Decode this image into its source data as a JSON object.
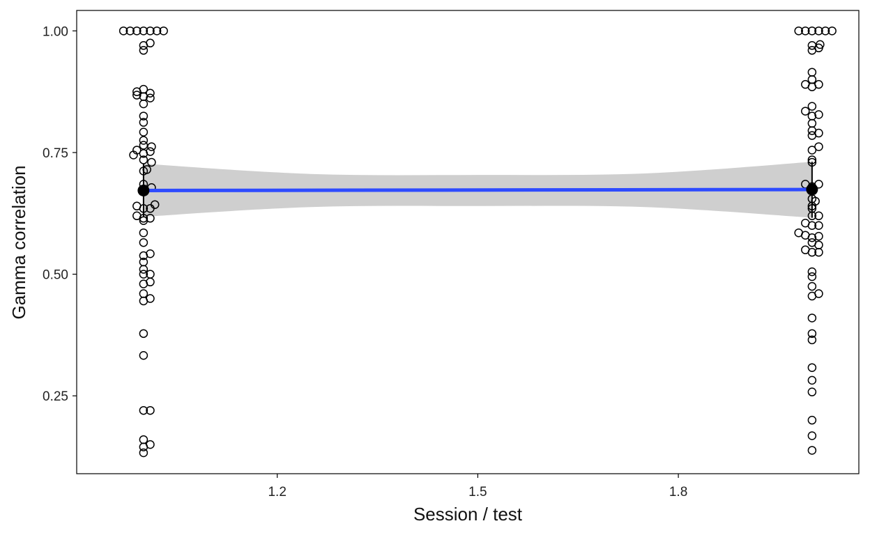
{
  "chart_data": {
    "type": "scatter",
    "title": "",
    "xlabel": "Session / test",
    "ylabel": "Gamma correlation",
    "xlim": [
      0.9,
      2.07
    ],
    "ylim": [
      0.09,
      1.042
    ],
    "x_ticks": [
      1.2,
      1.5,
      1.8
    ],
    "x_tick_labels": [
      "1.2",
      "1.5",
      "1.8"
    ],
    "y_ticks": [
      0.25,
      0.5,
      0.75,
      1.0
    ],
    "y_tick_labels": [
      "0.25",
      "0.50",
      "0.75",
      "1.00"
    ],
    "grid": false,
    "legend": "none",
    "colors": {
      "points": "#000000",
      "mean": "#000000",
      "fit_line": "#2E4BFF",
      "ci_band": "#CFCFCF",
      "frame": "#000000"
    },
    "fit": {
      "x": [
        1,
        2
      ],
      "y": [
        0.672,
        0.674
      ],
      "ci": [
        {
          "x": 1.0,
          "lower": 0.618,
          "upper": 0.727
        },
        {
          "x": 1.25,
          "lower": 0.638,
          "upper": 0.706
        },
        {
          "x": 1.5,
          "lower": 0.64,
          "upper": 0.704
        },
        {
          "x": 1.75,
          "lower": 0.638,
          "upper": 0.707
        },
        {
          "x": 2.0,
          "lower": 0.616,
          "upper": 0.731
        }
      ]
    },
    "means": [
      {
        "x": 1,
        "y": 0.672,
        "lower": 0.618,
        "upper": 0.727
      },
      {
        "x": 2,
        "y": 0.674,
        "lower": 0.616,
        "upper": 0.731
      }
    ],
    "series": [
      {
        "x_center": 1,
        "points": [
          [
            0.97,
            1.0
          ],
          [
            0.98,
            1.0
          ],
          [
            0.99,
            1.0
          ],
          [
            1.0,
            1.0
          ],
          [
            1.01,
            1.0
          ],
          [
            1.02,
            1.0
          ],
          [
            1.03,
            1.0
          ],
          [
            1.0,
            0.97
          ],
          [
            1.01,
            0.975
          ],
          [
            1.0,
            0.96
          ],
          [
            1.0,
            0.88
          ],
          [
            0.99,
            0.875
          ],
          [
            1.01,
            0.872
          ],
          [
            1.0,
            0.865
          ],
          [
            0.99,
            0.868
          ],
          [
            1.01,
            0.862
          ],
          [
            1.0,
            0.85
          ],
          [
            1.0,
            0.825
          ],
          [
            1.0,
            0.812
          ],
          [
            1.0,
            0.792
          ],
          [
            1.0,
            0.775
          ],
          [
            1.0,
            0.765
          ],
          [
            0.985,
            0.745
          ],
          [
            0.99,
            0.755
          ],
          [
            1.0,
            0.748
          ],
          [
            1.01,
            0.752
          ],
          [
            1.012,
            0.762
          ],
          [
            1.0,
            0.735
          ],
          [
            1.012,
            0.73
          ],
          [
            1.0,
            0.712
          ],
          [
            1.005,
            0.715
          ],
          [
            1.0,
            0.685
          ],
          [
            1.012,
            0.678
          ],
          [
            0.99,
            0.64
          ],
          [
            1.0,
            0.635
          ],
          [
            1.01,
            0.635
          ],
          [
            1.017,
            0.643
          ],
          [
            0.99,
            0.62
          ],
          [
            1.0,
            0.615
          ],
          [
            1.01,
            0.615
          ],
          [
            1.0,
            0.61
          ],
          [
            1.0,
            0.585
          ],
          [
            1.0,
            0.565
          ],
          [
            1.0,
            0.538
          ],
          [
            1.01,
            0.542
          ],
          [
            1.0,
            0.525
          ],
          [
            1.0,
            0.51
          ],
          [
            1.0,
            0.5
          ],
          [
            1.01,
            0.5
          ],
          [
            1.0,
            0.48
          ],
          [
            1.01,
            0.484
          ],
          [
            1.0,
            0.46
          ],
          [
            1.0,
            0.445
          ],
          [
            1.01,
            0.45
          ],
          [
            1.0,
            0.378
          ],
          [
            1.0,
            0.333
          ],
          [
            1.0,
            0.22
          ],
          [
            1.01,
            0.22
          ],
          [
            1.0,
            0.16
          ],
          [
            1.0,
            0.145
          ],
          [
            1.01,
            0.15
          ],
          [
            1.0,
            0.133
          ]
        ]
      },
      {
        "x_center": 2,
        "points": [
          [
            1.98,
            1.0
          ],
          [
            1.99,
            1.0
          ],
          [
            2.0,
            1.0
          ],
          [
            2.01,
            1.0
          ],
          [
            2.02,
            1.0
          ],
          [
            2.03,
            1.0
          ],
          [
            2.0,
            0.97
          ],
          [
            2.01,
            0.965
          ],
          [
            2.012,
            0.972
          ],
          [
            2.0,
            0.96
          ],
          [
            2.0,
            0.915
          ],
          [
            2.0,
            0.9
          ],
          [
            1.99,
            0.89
          ],
          [
            2.0,
            0.885
          ],
          [
            2.01,
            0.89
          ],
          [
            2.0,
            0.845
          ],
          [
            1.99,
            0.835
          ],
          [
            2.01,
            0.828
          ],
          [
            2.0,
            0.825
          ],
          [
            2.0,
            0.81
          ],
          [
            2.0,
            0.795
          ],
          [
            2.01,
            0.79
          ],
          [
            2.0,
            0.785
          ],
          [
            2.01,
            0.762
          ],
          [
            2.0,
            0.755
          ],
          [
            2.0,
            0.735
          ],
          [
            2.0,
            0.73
          ],
          [
            1.99,
            0.685
          ],
          [
            2.0,
            0.68
          ],
          [
            2.01,
            0.685
          ],
          [
            2.0,
            0.655
          ],
          [
            2.005,
            0.65
          ],
          [
            2.0,
            0.64
          ],
          [
            2.0,
            0.635
          ],
          [
            2.0,
            0.62
          ],
          [
            2.01,
            0.62
          ],
          [
            1.99,
            0.605
          ],
          [
            2.0,
            0.6
          ],
          [
            2.01,
            0.6
          ],
          [
            1.98,
            0.585
          ],
          [
            1.99,
            0.58
          ],
          [
            2.0,
            0.575
          ],
          [
            2.01,
            0.578
          ],
          [
            2.0,
            0.565
          ],
          [
            2.01,
            0.56
          ],
          [
            1.99,
            0.55
          ],
          [
            2.0,
            0.545
          ],
          [
            2.01,
            0.545
          ],
          [
            2.0,
            0.505
          ],
          [
            2.0,
            0.495
          ],
          [
            2.0,
            0.475
          ],
          [
            2.01,
            0.46
          ],
          [
            2.0,
            0.455
          ],
          [
            2.0,
            0.41
          ],
          [
            2.0,
            0.378
          ],
          [
            2.0,
            0.365
          ],
          [
            2.0,
            0.308
          ],
          [
            2.0,
            0.282
          ],
          [
            2.0,
            0.258
          ],
          [
            2.0,
            0.2
          ],
          [
            2.0,
            0.168
          ],
          [
            2.0,
            0.138
          ]
        ]
      }
    ]
  }
}
